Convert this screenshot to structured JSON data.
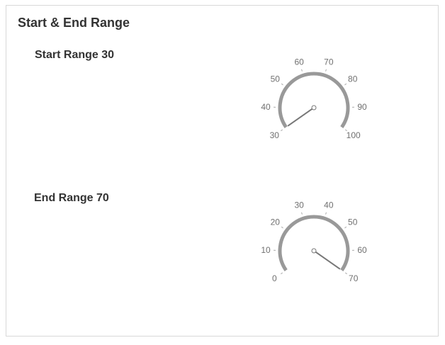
{
  "panel": {
    "title": "Start & End Range"
  },
  "gauges": [
    {
      "label": "Start Range 30",
      "value": 30,
      "range_start": 30,
      "range_end": 100,
      "ticks": [
        "30",
        "40",
        "50",
        "60",
        "70",
        "80",
        "90",
        "100"
      ],
      "arc_color": "#999999",
      "needle_color": "#777777"
    },
    {
      "label": "End Range 70",
      "value": 70,
      "range_start": 0,
      "range_end": 70,
      "ticks": [
        "0",
        "10",
        "20",
        "30",
        "40",
        "50",
        "60",
        "70"
      ],
      "arc_color": "#999999",
      "needle_color": "#777777"
    }
  ]
}
